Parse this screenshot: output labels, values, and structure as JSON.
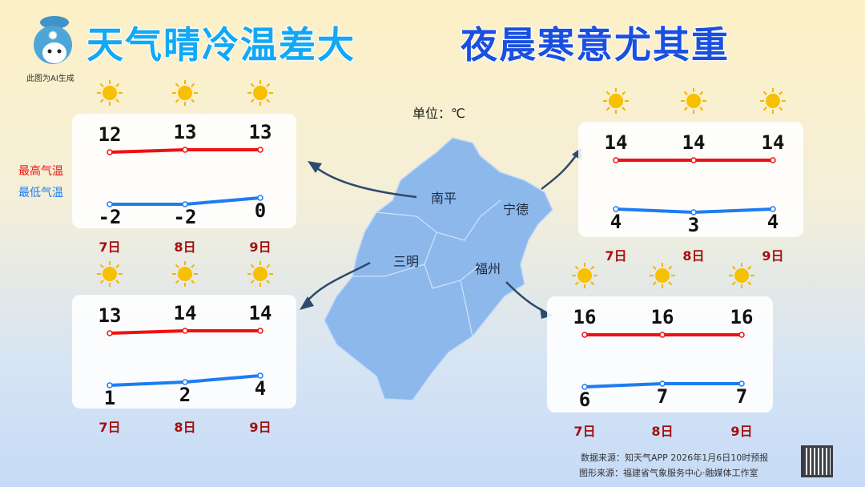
{
  "header": {
    "title_part1": "天气晴冷温差大",
    "title_part2": "夜晨寒意尤其重",
    "ai_note": "此图为AI生成",
    "title_color_1": "#12a8f5",
    "title_color_2": "#1a4fe0"
  },
  "unit_label": "单位：℃",
  "legend": {
    "high": "最高气温",
    "low": "最低气温",
    "high_color": "#f01010",
    "low_color": "#1e7cf2"
  },
  "map": {
    "cities": [
      "南平",
      "宁德",
      "三明",
      "福州"
    ],
    "fill": "#8db8ec"
  },
  "chart_data": [
    {
      "type": "line",
      "city": "南平",
      "categories": [
        "7日",
        "8日",
        "9日"
      ],
      "weather_icon": "sun-icon",
      "series": [
        {
          "name": "最高气温",
          "values": [
            12,
            13,
            13
          ]
        },
        {
          "name": "最低气温",
          "values": [
            -2,
            -2,
            0
          ]
        }
      ]
    },
    {
      "type": "line",
      "city": "三明",
      "categories": [
        "7日",
        "8日",
        "9日"
      ],
      "weather_icon": "sun-icon",
      "series": [
        {
          "name": "最高气温",
          "values": [
            13,
            14,
            14
          ]
        },
        {
          "name": "最低气温",
          "values": [
            1,
            2,
            4
          ]
        }
      ]
    },
    {
      "type": "line",
      "city": "宁德",
      "categories": [
        "7日",
        "8日",
        "9日"
      ],
      "weather_icon": "sun-icon",
      "series": [
        {
          "name": "最高气温",
          "values": [
            14,
            14,
            14
          ]
        },
        {
          "name": "最低气温",
          "values": [
            4,
            3,
            4
          ]
        }
      ]
    },
    {
      "type": "line",
      "city": "福州",
      "categories": [
        "7日",
        "8日",
        "9日"
      ],
      "weather_icon": "sun-icon",
      "series": [
        {
          "name": "最高气温",
          "values": [
            16,
            16,
            16
          ]
        },
        {
          "name": "最低气温",
          "values": [
            6,
            7,
            7
          ]
        }
      ]
    }
  ],
  "footer": {
    "data_source": "数据来源：知天气APP 2026年1月6日10时预报",
    "graphic_source": "图形来源：福建省气象服务中心·融媒体工作室"
  }
}
